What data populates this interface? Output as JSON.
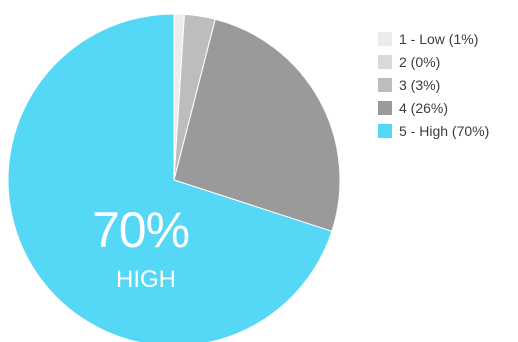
{
  "chart_data": {
    "type": "pie",
    "categories": [
      "1 - Low",
      "2",
      "3",
      "4",
      "5 - High"
    ],
    "values": [
      1,
      0,
      3,
      26,
      70
    ],
    "colors": [
      "#ececec",
      "#d9d9d9",
      "#bdbdbd",
      "#9a9a9a",
      "#55d7f6"
    ],
    "legend_position": "right",
    "legend": [
      {
        "label": "1 - Low (1%)",
        "color": "#ececec"
      },
      {
        "label": "2 (0%)",
        "color": "#d9d9d9"
      },
      {
        "label": "3 (3%)",
        "color": "#bdbdbd"
      },
      {
        "label": "4 (26%)",
        "color": "#9a9a9a"
      },
      {
        "label": "5 - High (70%)",
        "color": "#55d7f6"
      }
    ],
    "annotation": {
      "value": "70%",
      "label": "HIGH"
    }
  }
}
